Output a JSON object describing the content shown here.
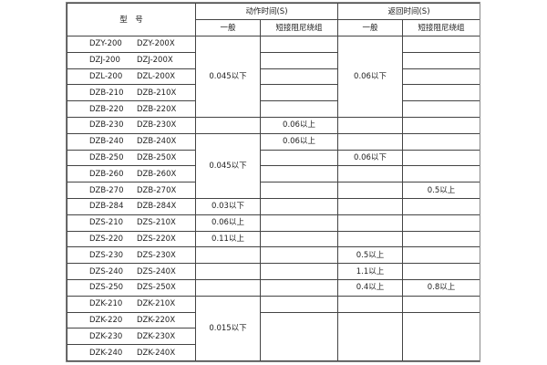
{
  "header": {
    "model": "型　号",
    "action_time": "动作时间(S)",
    "return_time": "返回时间(S)",
    "general": "一般",
    "short_damping": "短接阻尼绕组"
  },
  "rows": [
    {
      "a": "DZY-200",
      "b": "DZY-200X"
    },
    {
      "a": "DZJ-200",
      "b": "DZJ-200X"
    },
    {
      "a": "DZL-200",
      "b": "DZL-200X"
    },
    {
      "a": "DZB-210",
      "b": "DZB-210X"
    },
    {
      "a": "DZB-220",
      "b": "DZB-220X"
    },
    {
      "a": "DZB-230",
      "b": "DZB-230X"
    },
    {
      "a": "DZB-240",
      "b": "DZB-240X"
    },
    {
      "a": "DZB-250",
      "b": "DZB-250X"
    },
    {
      "a": "DZB-260",
      "b": "DZB-260X"
    },
    {
      "a": "DZB-270",
      "b": "DZB-270X"
    },
    {
      "a": "DZB-284",
      "b": "DZB-284X"
    },
    {
      "a": "DZS-210",
      "b": "DZS-210X"
    },
    {
      "a": "DZS-220",
      "b": "DZS-220X"
    },
    {
      "a": "DZS-230",
      "b": "DZS-230X"
    },
    {
      "a": "DZS-240",
      "b": "DZS-240X"
    },
    {
      "a": "DZS-250",
      "b": "DZS-250X"
    },
    {
      "a": "DZK-210",
      "b": "DZK-210X"
    },
    {
      "a": "DZK-220",
      "b": "DZK-220X"
    },
    {
      "a": "DZK-230",
      "b": "DZK-230X"
    },
    {
      "a": "DZK-240",
      "b": "DZK-240X"
    }
  ],
  "values": {
    "g1_action": "0.045以下",
    "g1_return": "0.06以下",
    "r230_short": "0.06以上",
    "g2_action": "0.045以下",
    "r240_short": "0.06以上",
    "r250_return": "0.06以下",
    "r270_return_short": "0.5以上",
    "r284_action": "0.03以下",
    "r210s_action": "0.06以上",
    "r220s_action": "0.11以上",
    "r230s_return": "0.5以上",
    "r240s_return": "1.1以上",
    "r250s_return": "0.4以上",
    "r250s_return_short": "0.8以上",
    "dzk_action": "0.015以下"
  }
}
